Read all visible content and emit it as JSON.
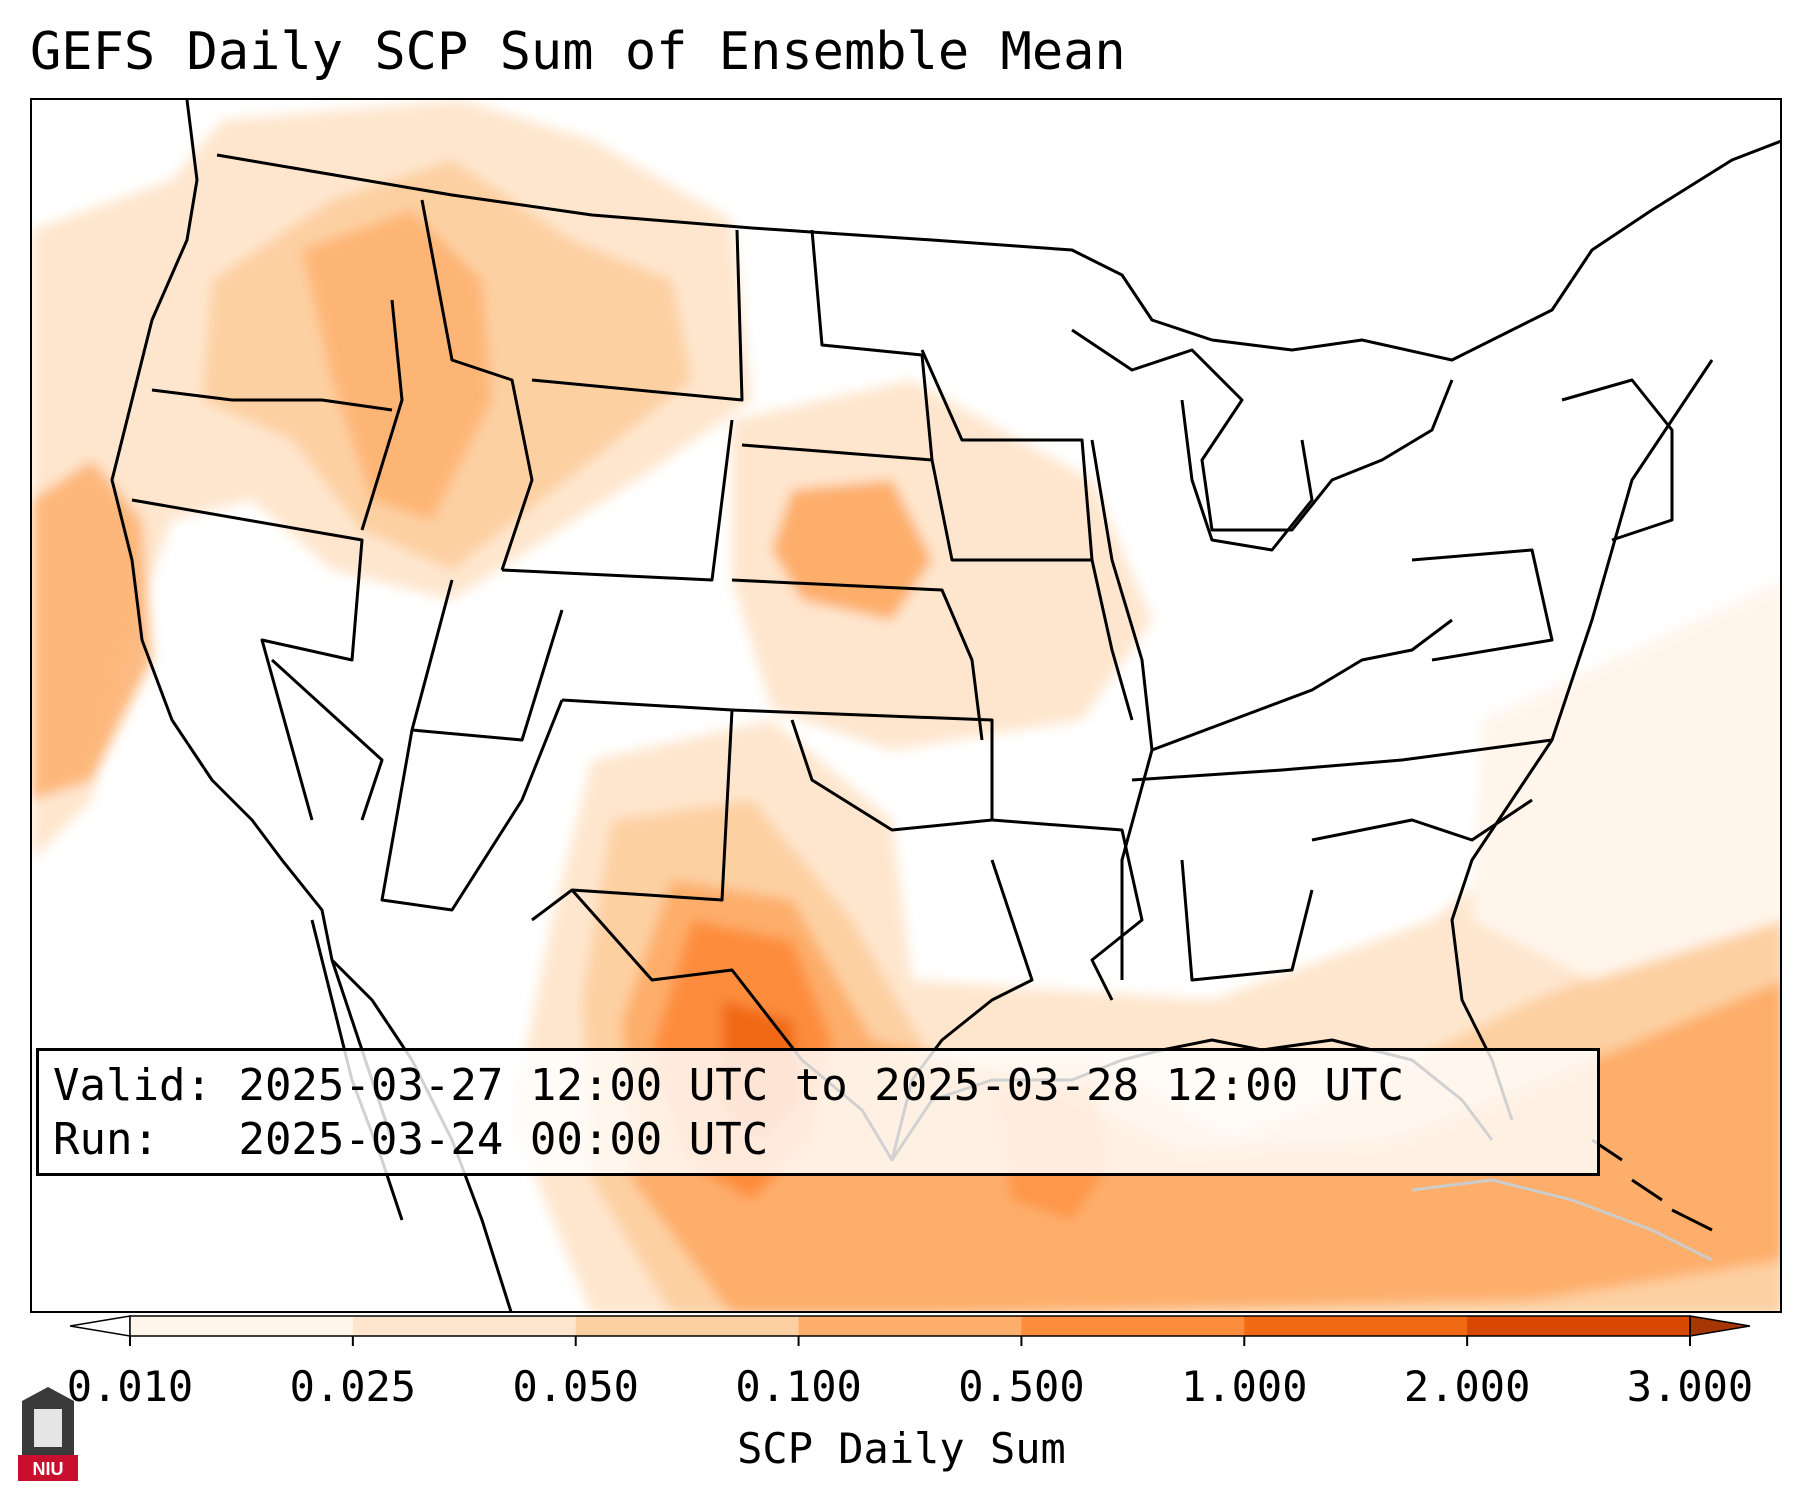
{
  "title": "GEFS Daily SCP Sum of Ensemble Mean",
  "info": {
    "valid_label": "Valid:",
    "valid_value": "2025-03-27 12:00 UTC to 2025-03-28 12:00 UTC",
    "run_label": "Run:",
    "run_value": "2025-03-24 00:00 UTC"
  },
  "colorbar": {
    "title": "SCP Daily Sum",
    "ticks": [
      "0.010",
      "0.025",
      "0.050",
      "0.100",
      "0.500",
      "1.000",
      "2.000",
      "3.000"
    ],
    "colors": [
      "#fff5eb",
      "#fee6ce",
      "#fdd0a2",
      "#fdae6b",
      "#fd8d3c",
      "#f16913",
      "#d94801"
    ],
    "under_color": "#ffffff",
    "over_color": "#a63603"
  },
  "logo": {
    "text": "NIU",
    "icon": "university-tower-icon",
    "color": "#c8102e"
  }
}
